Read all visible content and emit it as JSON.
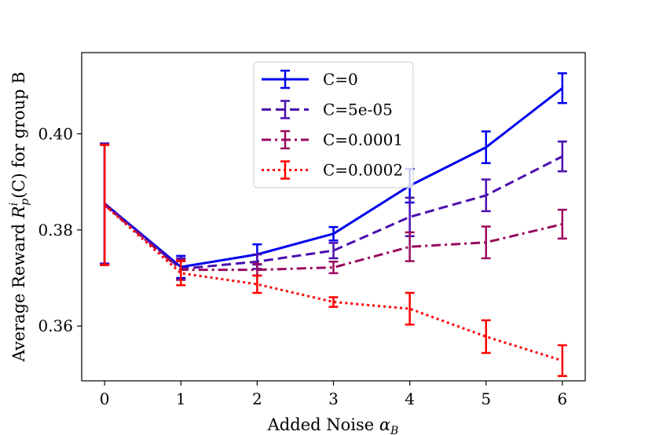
{
  "chart_data": {
    "type": "line",
    "title": "",
    "xlabel": "Added Noise α_B",
    "ylabel": "Average Reward R_p^i(C) for group B",
    "xlabel_parts": {
      "main": "Added Noise ",
      "symbol": "α",
      "sub": "B"
    },
    "ylabel_parts": {
      "prefix": "Average Reward ",
      "symbol": "R",
      "sup": "i",
      "sub": "p",
      "suffix": "(C) for group B"
    },
    "x": [
      0,
      1,
      2,
      3,
      4,
      5,
      6
    ],
    "xticks": [
      "0",
      "1",
      "2",
      "3",
      "4",
      "5",
      "6"
    ],
    "yticks": [
      {
        "value": 0.36,
        "label": "0.36"
      },
      {
        "value": 0.38,
        "label": "0.38"
      },
      {
        "value": 0.4,
        "label": "0.40"
      }
    ],
    "xlim": [
      -0.3,
      6.3
    ],
    "ylim": [
      0.3486,
      0.4169
    ],
    "grid": false,
    "legend_position": "top-center",
    "series": [
      {
        "name": "C=0",
        "color": "#0000ee",
        "style": "solid",
        "values": [
          0.3855,
          0.3723,
          0.3749,
          0.3792,
          0.3892,
          0.3972,
          0.4095
        ],
        "errors": [
          0.0125,
          0.0023,
          0.0021,
          0.0014,
          0.0035,
          0.0033,
          0.0031
        ]
      },
      {
        "name": "C=5e-05",
        "color": "#4b0fb0",
        "style": "dashed",
        "values": [
          0.3855,
          0.3719,
          0.3734,
          0.3757,
          0.3827,
          0.3872,
          0.3953
        ],
        "errors": [
          0.0125,
          0.0022,
          0.0015,
          0.0016,
          0.004,
          0.0033,
          0.0031
        ]
      },
      {
        "name": "C=0.0001",
        "color": "#9a0a5f",
        "style": "dashdot",
        "values": [
          0.3852,
          0.3717,
          0.3717,
          0.3722,
          0.3765,
          0.3774,
          0.3812
        ],
        "errors": [
          0.0125,
          0.0021,
          0.0012,
          0.0012,
          0.003,
          0.0033,
          0.003
        ]
      },
      {
        "name": "C=0.0002",
        "color": "#ff0000",
        "style": "dotted",
        "values": [
          0.3852,
          0.371,
          0.3687,
          0.365,
          0.3636,
          0.3578,
          0.3528
        ],
        "errors": [
          0.0125,
          0.0025,
          0.0018,
          0.001,
          0.0033,
          0.0034,
          0.0032
        ]
      }
    ]
  }
}
